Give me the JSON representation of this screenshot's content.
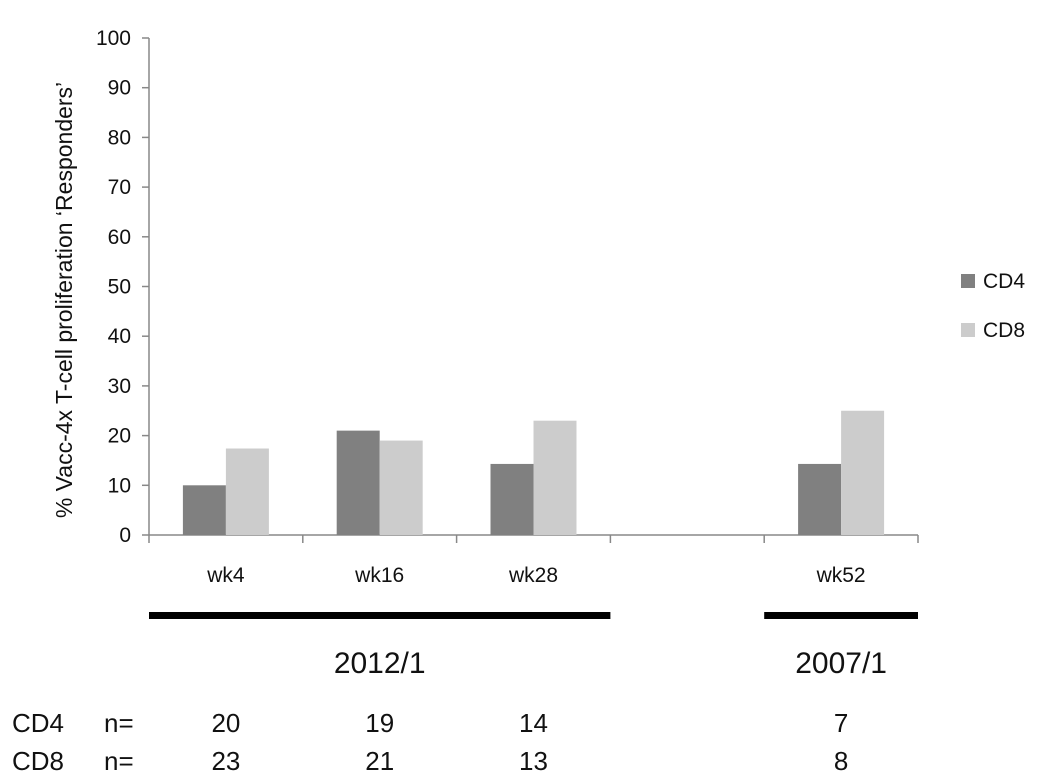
{
  "chart_data": {
    "type": "bar",
    "ylabel": "% Vacc-4x T-cell proliferation ‘Responders’",
    "ylim": [
      0,
      100
    ],
    "yticks": [
      "0",
      "10",
      "20",
      "30",
      "40",
      "50",
      "60",
      "70",
      "80",
      "90",
      "100"
    ],
    "categories": [
      "wk4",
      "wk16",
      "wk28",
      "",
      "wk52"
    ],
    "series": [
      {
        "name": "CD4",
        "color": "#808080",
        "values": [
          10,
          21,
          14.3,
          null,
          14.3
        ]
      },
      {
        "name": "CD8",
        "color": "#cccccc",
        "values": [
          17.4,
          19,
          23,
          null,
          25
        ]
      }
    ],
    "legend_position": "right",
    "grid": false,
    "groups": [
      {
        "label": "2012/1",
        "categories": [
          "wk4",
          "wk16",
          "wk28"
        ]
      },
      {
        "label": "2007/1",
        "categories": [
          "wk52"
        ]
      }
    ],
    "n_table": {
      "label": "n=",
      "rows": [
        {
          "name": "CD4",
          "values": [
            "20",
            "19",
            "14",
            "",
            "7"
          ]
        },
        {
          "name": "CD8",
          "values": [
            "23",
            "21",
            "13",
            "",
            "8"
          ]
        }
      ]
    }
  }
}
